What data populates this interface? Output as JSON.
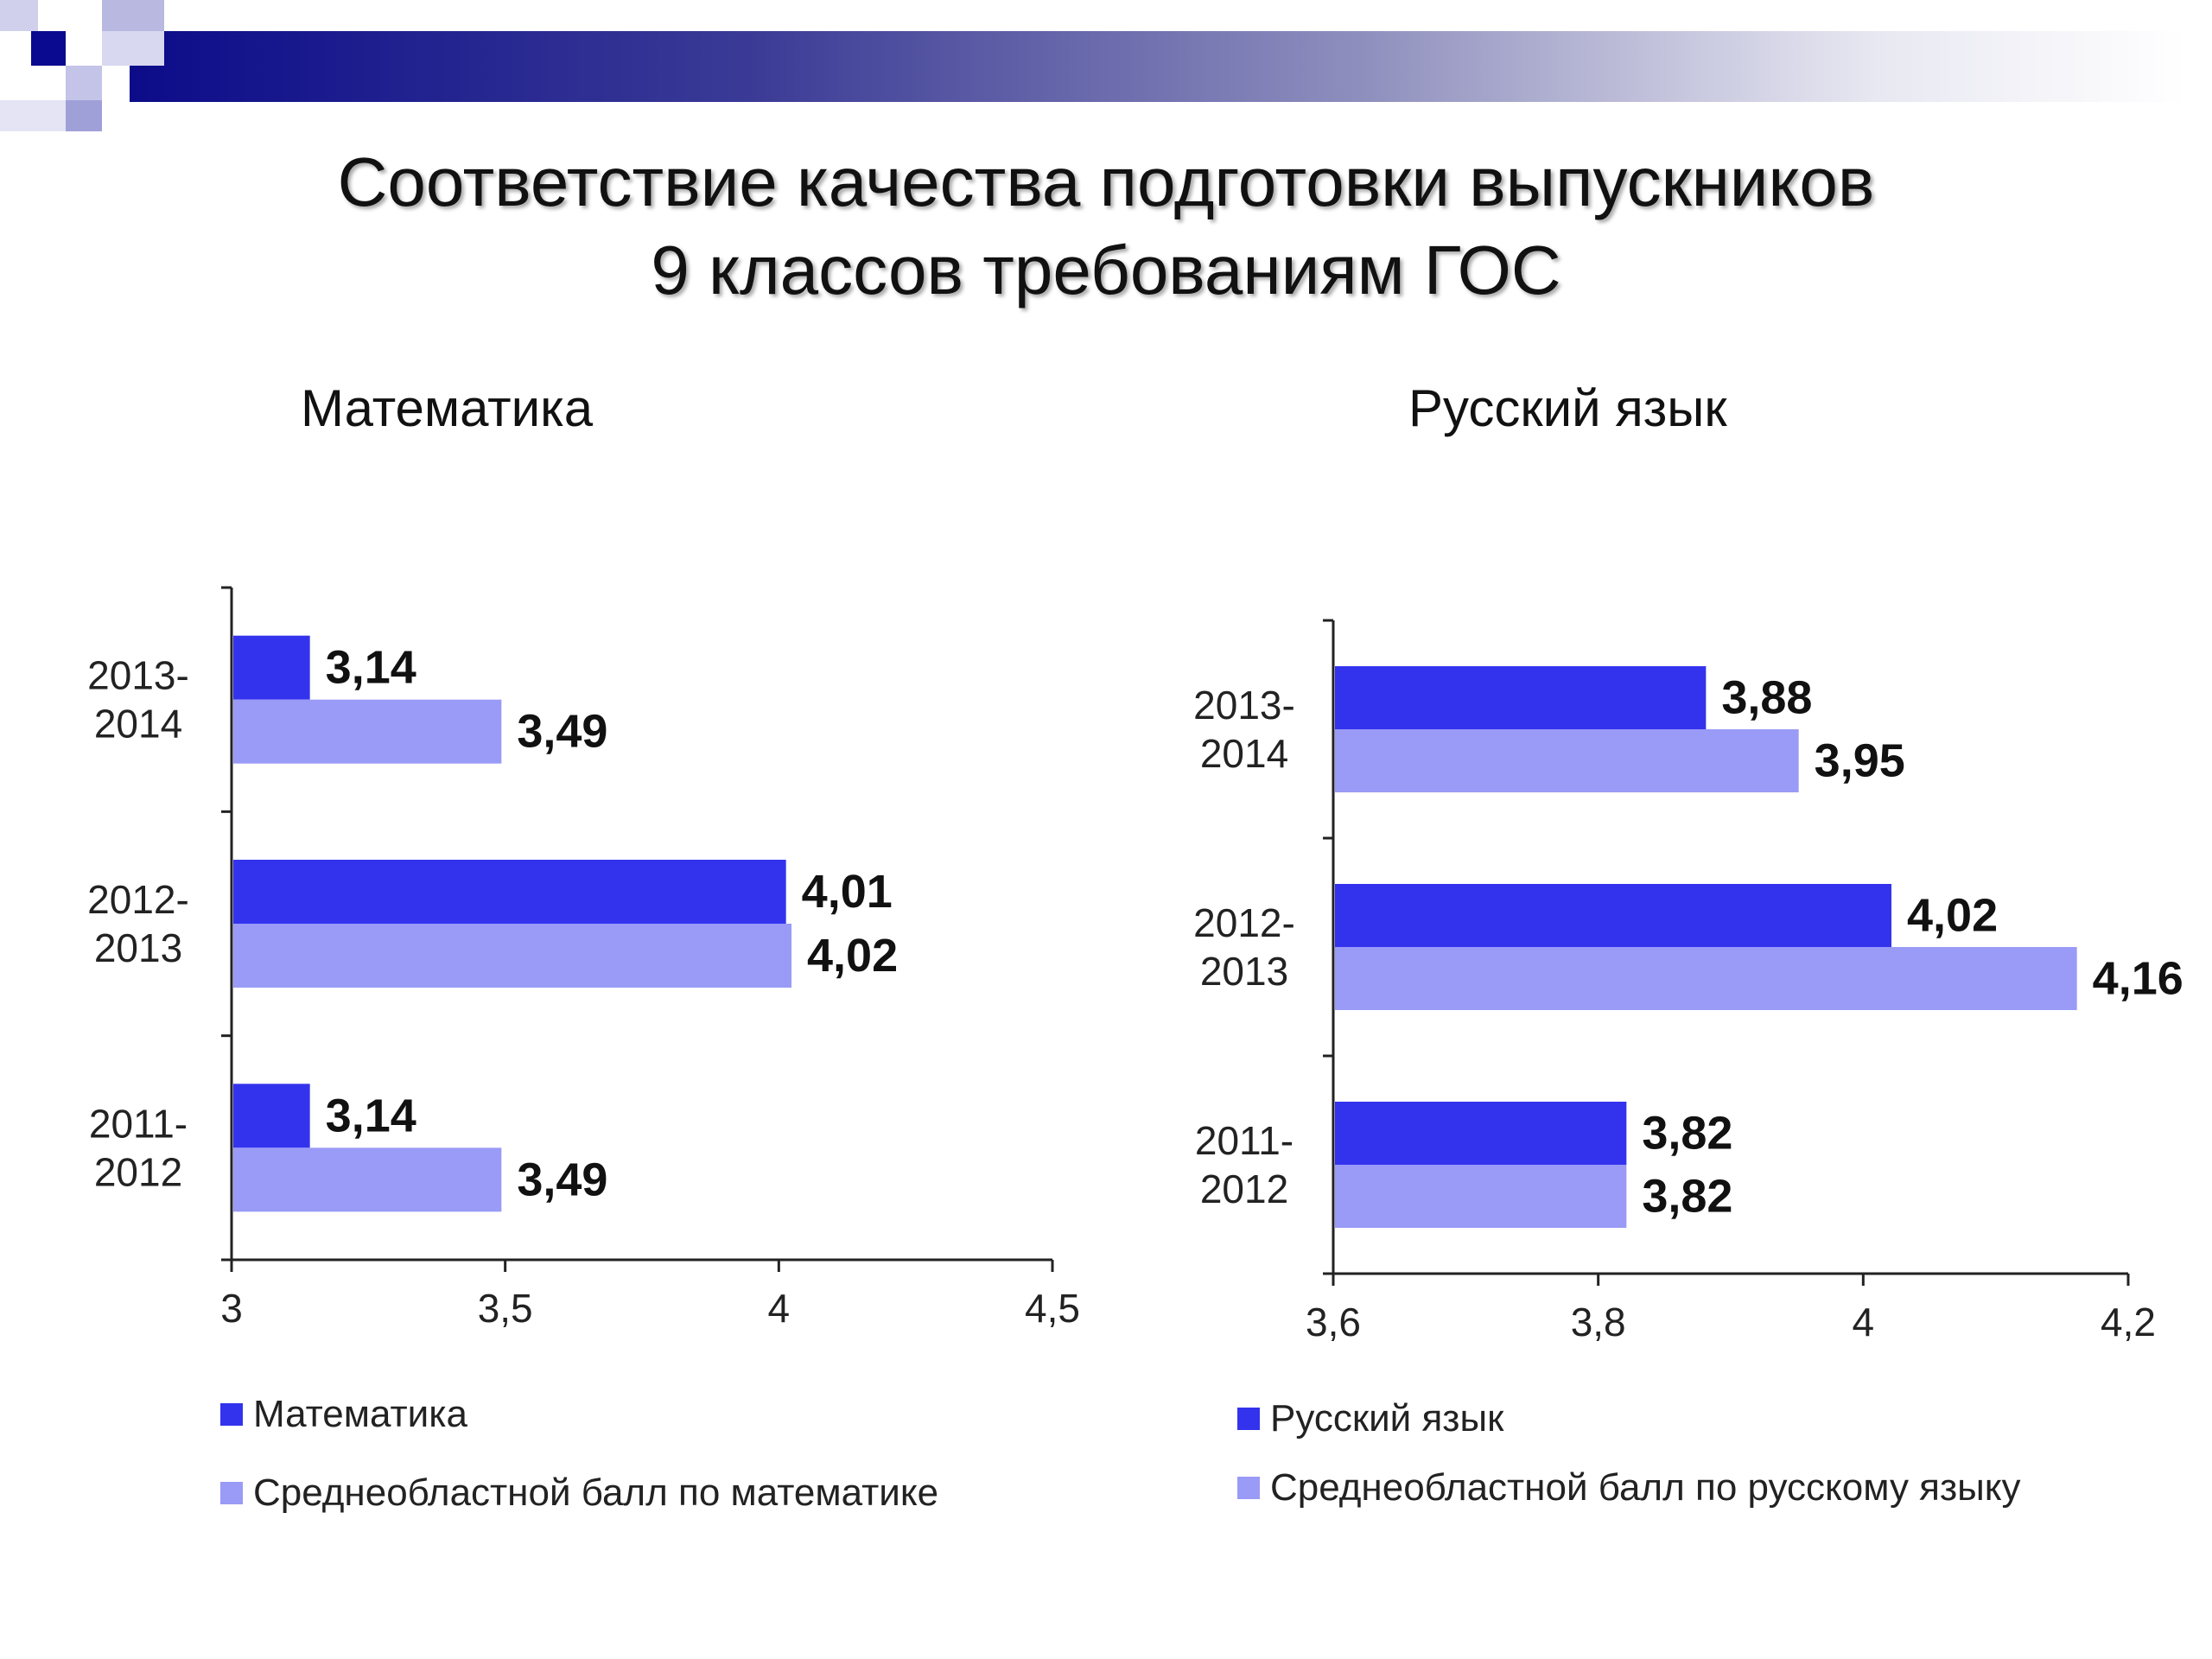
{
  "slide": {
    "title_line1": "Соответствие качества подготовки выпускников",
    "title_line2": "9 классов требованиям ГОС"
  },
  "colors": {
    "banner_dark": "#0c0c8a",
    "series_primary": "#3333ee",
    "series_regional": "#9a9af7"
  },
  "charts": {
    "math": {
      "heading": "Математика",
      "legend": [
        "Математика",
        "Среднеобластной балл по математике"
      ]
    },
    "russian": {
      "heading": "Русский язык",
      "legend": [
        "Русский язык",
        "Среднеобластной балл по русскому языку"
      ]
    }
  },
  "chart_data": [
    {
      "type": "bar",
      "orientation": "horizontal",
      "title": "Математика",
      "categories": [
        "2013-2014",
        "2012-2013",
        "2011-2012"
      ],
      "category_labels": [
        [
          "2013-",
          "2014"
        ],
        [
          "2012-",
          "2013"
        ],
        [
          "2011-",
          "2012"
        ]
      ],
      "series": [
        {
          "name": "Математика",
          "color": "#3333ee",
          "values": [
            3.14,
            4.01,
            3.14
          ],
          "labels": [
            "3,14",
            "4,01",
            "3,14"
          ]
        },
        {
          "name": "Среднеобластной балл по математике",
          "color": "#9a9af7",
          "values": [
            3.49,
            4.02,
            3.49
          ],
          "labels": [
            "3,49",
            "4,02",
            "3,49"
          ]
        }
      ],
      "xlim": [
        3,
        4.5
      ],
      "xticks": [
        3,
        3.5,
        4,
        4.5
      ],
      "xtick_labels": [
        "3",
        "3,5",
        "4",
        "4,5"
      ],
      "grid": false,
      "legend_position": "bottom"
    },
    {
      "type": "bar",
      "orientation": "horizontal",
      "title": "Русский язык",
      "categories": [
        "2013-2014",
        "2012-2013",
        "2011-2012"
      ],
      "category_labels": [
        [
          "2013-",
          "2014"
        ],
        [
          "2012-",
          "2013"
        ],
        [
          "2011-",
          "2012"
        ]
      ],
      "series": [
        {
          "name": "Русский язык",
          "color": "#3333ee",
          "values": [
            3.88,
            4.02,
            3.82
          ],
          "labels": [
            "3,88",
            "4,02",
            "3,82"
          ]
        },
        {
          "name": "Среднеобластной балл по русскому языку",
          "color": "#9a9af7",
          "values": [
            3.95,
            4.16,
            3.82
          ],
          "labels": [
            "3,95",
            "4,16",
            "3,82"
          ]
        }
      ],
      "xlim": [
        3.6,
        4.2
      ],
      "xticks": [
        3.6,
        3.8,
        4,
        4.2
      ],
      "xtick_labels": [
        "3,6",
        "3,8",
        "4",
        "4,2"
      ],
      "grid": false,
      "legend_position": "bottom"
    }
  ]
}
